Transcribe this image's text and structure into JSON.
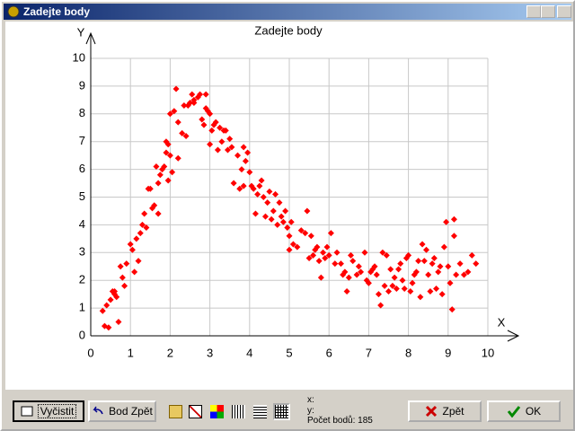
{
  "window": {
    "title": "Zadejte body"
  },
  "chart_data": {
    "type": "scatter",
    "title": "Zadejte body",
    "x_label": "X",
    "y_label": "Y",
    "color": "#ff0000",
    "grid": true,
    "xlim": [
      0,
      10
    ],
    "ylim": [
      0,
      10
    ],
    "xticks": [
      0,
      1,
      2,
      3,
      4,
      5,
      6,
      7,
      8,
      9,
      10
    ],
    "yticks": [
      0,
      1,
      2,
      3,
      4,
      5,
      6,
      7,
      8,
      9,
      10
    ],
    "x": [
      0.3,
      0.35,
      0.45,
      0.5,
      0.55,
      0.6,
      0.65,
      0.7,
      0.75,
      0.8,
      0.85,
      0.9,
      1.0,
      1.05,
      1.1,
      1.15,
      1.2,
      1.25,
      1.3,
      1.35,
      1.4,
      1.45,
      1.5,
      1.55,
      1.6,
      1.65,
      1.7,
      1.7,
      1.75,
      1.8,
      1.85,
      1.9,
      1.9,
      1.95,
      2.0,
      2.05,
      2.0,
      2.1,
      2.15,
      2.2,
      2.2,
      2.3,
      2.35,
      2.4,
      2.45,
      2.5,
      2.55,
      2.6,
      2.7,
      2.75,
      2.8,
      2.85,
      2.9,
      2.9,
      2.95,
      3.0,
      3.0,
      3.05,
      3.1,
      3.15,
      3.2,
      3.25,
      3.3,
      3.35,
      3.45,
      3.5,
      3.55,
      3.6,
      3.7,
      3.75,
      3.8,
      3.85,
      3.9,
      3.95,
      4.0,
      4.05,
      4.1,
      4.15,
      4.2,
      4.25,
      4.3,
      4.35,
      4.4,
      4.45,
      4.5,
      4.55,
      4.6,
      4.65,
      4.7,
      4.75,
      4.8,
      4.85,
      4.95,
      5.0,
      5.0,
      5.05,
      5.1,
      5.2,
      5.3,
      5.4,
      5.45,
      5.5,
      5.6,
      5.65,
      5.7,
      5.75,
      5.8,
      5.85,
      5.9,
      5.95,
      6.0,
      6.05,
      6.15,
      6.3,
      6.4,
      6.45,
      6.5,
      6.55,
      6.6,
      6.7,
      6.75,
      6.8,
      6.9,
      6.95,
      7.0,
      7.05,
      7.1,
      7.15,
      7.2,
      7.25,
      7.3,
      7.35,
      7.4,
      7.45,
      7.5,
      7.55,
      7.6,
      7.7,
      7.75,
      7.8,
      7.85,
      7.9,
      7.95,
      8.0,
      8.05,
      8.2,
      8.25,
      8.3,
      8.35,
      8.4,
      8.45,
      8.5,
      8.55,
      8.6,
      8.65,
      8.7,
      8.75,
      8.8,
      8.85,
      8.9,
      8.95,
      9.0,
      9.05,
      9.1,
      9.15,
      9.15,
      9.2,
      9.3,
      9.4,
      9.6,
      9.7,
      8.1,
      6.2,
      4.9,
      3.4,
      1.95,
      0.6,
      5.55,
      7.65,
      8.15,
      2.6,
      3.85,
      6.35,
      0.4,
      9.5
    ],
    "values": [
      0.9,
      0.35,
      0.3,
      1.3,
      1.6,
      1.5,
      1.4,
      0.5,
      2.5,
      2.1,
      1.8,
      2.6,
      3.3,
      3.1,
      2.3,
      3.5,
      2.7,
      3.7,
      4.0,
      4.4,
      3.9,
      5.3,
      5.3,
      4.6,
      4.7,
      6.1,
      5.5,
      4.4,
      5.8,
      6.0,
      6.1,
      7.0,
      6.6,
      6.9,
      6.5,
      5.9,
      8.0,
      8.1,
      8.9,
      7.7,
      6.4,
      7.3,
      8.3,
      7.2,
      8.3,
      8.4,
      8.7,
      8.5,
      8.6,
      8.7,
      7.8,
      7.6,
      8.7,
      8.2,
      8.1,
      8.0,
      6.9,
      7.4,
      7.6,
      7.7,
      6.7,
      7.5,
      7.0,
      7.4,
      6.7,
      7.1,
      6.8,
      5.5,
      6.5,
      5.3,
      6.0,
      6.8,
      6.3,
      6.6,
      5.9,
      5.4,
      5.3,
      4.4,
      5.1,
      5.4,
      5.6,
      5.0,
      4.3,
      4.8,
      5.2,
      4.2,
      4.5,
      5.1,
      4.0,
      4.8,
      4.3,
      4.1,
      3.9,
      3.6,
      3.1,
      4.1,
      3.3,
      3.2,
      3.8,
      3.7,
      4.5,
      2.8,
      2.9,
      3.1,
      3.2,
      2.7,
      2.1,
      3.0,
      2.8,
      3.2,
      2.9,
      3.7,
      2.6,
      2.6,
      2.3,
      1.6,
      2.1,
      2.9,
      2.7,
      2.2,
      2.5,
      2.3,
      3.0,
      2.0,
      1.9,
      2.3,
      2.4,
      2.5,
      2.2,
      1.5,
      1.1,
      3.0,
      1.8,
      2.9,
      1.6,
      2.4,
      1.8,
      1.7,
      2.4,
      2.6,
      2.0,
      1.7,
      2.8,
      2.9,
      1.6,
      2.3,
      2.7,
      1.4,
      3.3,
      2.7,
      3.1,
      2.2,
      1.6,
      2.6,
      2.8,
      1.7,
      2.3,
      2.5,
      1.5,
      3.2,
      4.1,
      2.5,
      1.9,
      0.95,
      4.2,
      3.6,
      2.2,
      2.6,
      2.2,
      2.9,
      2.6,
      1.9,
      3.0,
      4.5,
      7.4,
      5.6,
      1.6,
      3.6,
      2.1,
      2.2,
      8.4,
      5.4,
      2.2,
      1.1,
      2.3
    ]
  },
  "toolbar": {
    "clear": "Vyčistit",
    "undo_point": "Bod Zpět",
    "status": {
      "x": "x:",
      "y": "y:",
      "count": "Počet bodů: 185"
    },
    "back": "Zpět",
    "ok": "OK"
  }
}
